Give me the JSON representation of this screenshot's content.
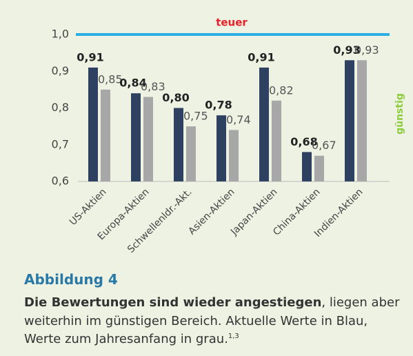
{
  "chart_data": {
    "type": "bar",
    "annotations": [
      "teuer",
      "günstig"
    ],
    "categories": [
      "US-Aktien",
      "Europa-Aktien",
      "Schwellenldr.-Akt.",
      "Asien-Aktien",
      "Japan-Aktien",
      "China-Aktien",
      "Indien-Aktien"
    ],
    "series": [
      {
        "color": "#2f4160",
        "values": [
          0.91,
          0.84,
          0.8,
          0.78,
          0.91,
          0.68,
          0.93
        ],
        "value_labels": [
          "0,91",
          "0,84",
          "0,80",
          "0,78",
          "0,91",
          "0,68",
          "0,93"
        ]
      },
      {
        "color": "#a7a7a7",
        "values": [
          0.85,
          0.83,
          0.75,
          0.74,
          0.82,
          0.67,
          0.93
        ],
        "value_labels": [
          "0,85",
          "0,83",
          "0,75",
          "0,74",
          "0,82",
          "0,67",
          "0,93"
        ]
      }
    ],
    "ylim": [
      0.6,
      1.0
    ],
    "yticks": [
      {
        "value": 0.6,
        "label": "0,6"
      },
      {
        "value": 0.7,
        "label": "0,7"
      },
      {
        "value": 0.8,
        "label": "0,8"
      },
      {
        "value": 0.9,
        "label": "0,9"
      },
      {
        "value": 1.0,
        "label": "1,0"
      }
    ],
    "line_color": "#2aaee4"
  },
  "caption": {
    "title": "Abbildung 4",
    "bold": "Die Bewertungen sind wieder angestiegen",
    "text": ", liegen aber weiterhin im günstigen Bereich. Aktuelle Werte in Blau, Werte zum Jahresanfang in grau.",
    "footnote": "1,3"
  }
}
